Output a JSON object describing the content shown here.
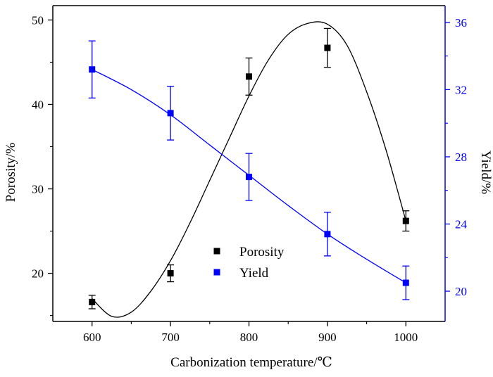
{
  "chart_data": {
    "type": "scatter",
    "xlabel": "Carbonization temperature/℃",
    "ylabel_left": "Porosity/%",
    "ylabel_right": "Yield/%",
    "x_ticks": [
      600,
      700,
      800,
      900,
      1000
    ],
    "y_left_ticks": [
      20,
      30,
      40,
      50
    ],
    "y_right_ticks": [
      20,
      24,
      28,
      32,
      36
    ],
    "xlim": [
      550,
      1050
    ],
    "ylim_left": [
      14.3,
      51.7
    ],
    "ylim_right": [
      18.2,
      37
    ],
    "legend_position": "lower-center",
    "grid": false,
    "series": [
      {
        "name": "Porosity",
        "axis": "left",
        "color": "#000000",
        "marker": "square",
        "x": [
          600,
          700,
          800,
          900,
          1000
        ],
        "y": [
          16.6,
          20.0,
          43.3,
          46.7,
          26.2
        ],
        "err": [
          0.8,
          1.0,
          2.2,
          2.3,
          1.2
        ],
        "fit_curve": {
          "x": [
            600,
            625,
            650,
            675,
            700,
            725,
            750,
            775,
            800,
            825,
            850,
            875,
            900,
            925,
            950,
            975,
            1000
          ],
          "y": [
            17.0,
            14.9,
            15.4,
            17.9,
            21.5,
            26.0,
            31.0,
            36.0,
            41.0,
            45.3,
            48.3,
            49.6,
            49.5,
            47.0,
            41.5,
            34.5,
            26.2
          ]
        }
      },
      {
        "name": "Yield",
        "axis": "right",
        "color": "#0000ff",
        "marker": "square",
        "x": [
          600,
          700,
          800,
          900,
          1000
        ],
        "y": [
          33.2,
          30.6,
          26.8,
          23.4,
          20.5
        ],
        "err": [
          1.7,
          1.6,
          1.4,
          1.3,
          1.0
        ],
        "fit_curve": {
          "x": [
            600,
            650,
            700,
            750,
            800,
            850,
            900,
            950,
            1000
          ],
          "y": [
            33.2,
            32.0,
            30.5,
            28.7,
            26.9,
            25.1,
            23.4,
            21.9,
            20.5
          ]
        }
      }
    ]
  }
}
